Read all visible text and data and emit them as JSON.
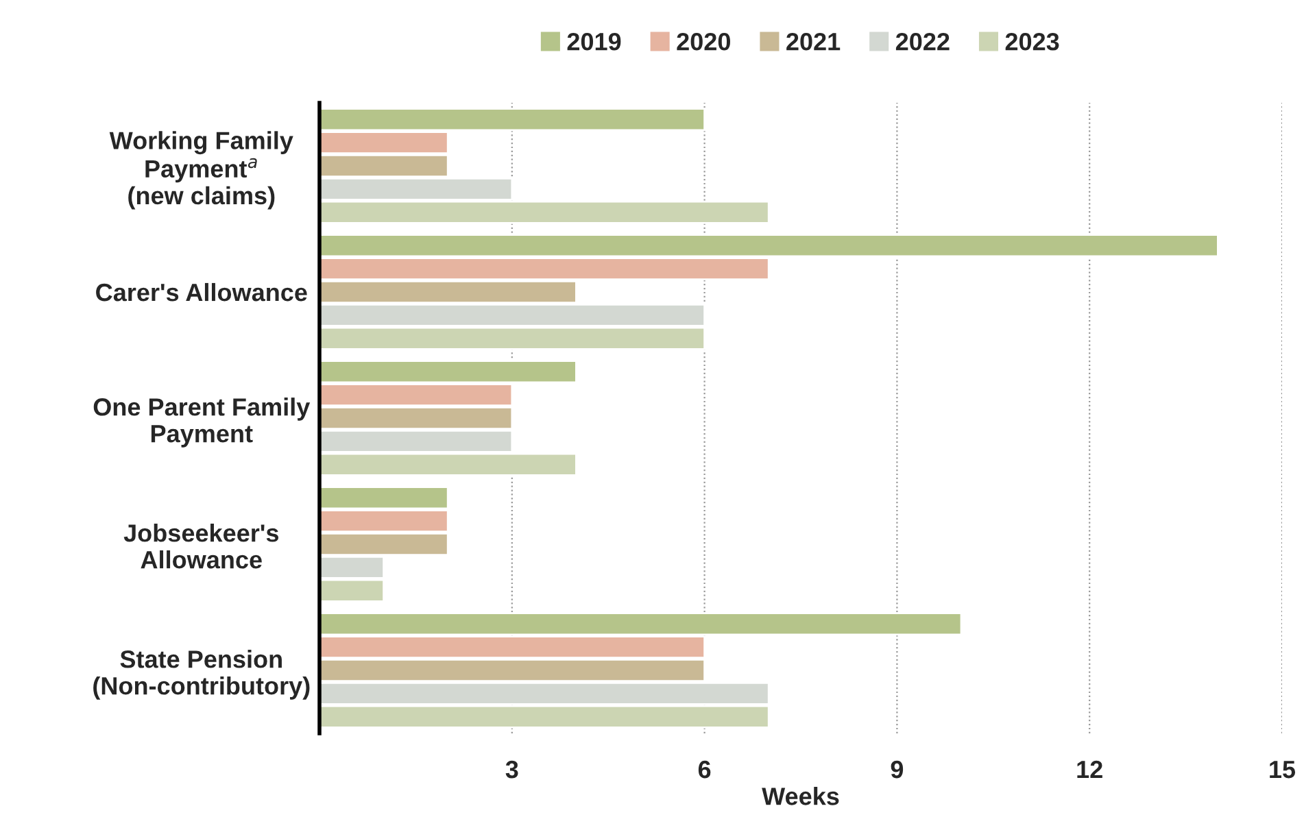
{
  "chart_data": {
    "type": "bar",
    "orientation": "horizontal",
    "categories": [
      "Working Family\nPayment$^{a}$\n(new claims)",
      "Carer's Allowance",
      "One Parent Family\nPayment",
      "Jobseekeer's\nAllowance",
      "State Pension\n(Non-contributory)"
    ],
    "series": [
      {
        "name": "2019",
        "color": "#b5c48a",
        "values": [
          6,
          14,
          4,
          2,
          10
        ]
      },
      {
        "name": "2020",
        "color": "#e6b4a0",
        "values": [
          2,
          7,
          3,
          2,
          6
        ]
      },
      {
        "name": "2021",
        "color": "#c9b995",
        "values": [
          2,
          4,
          3,
          2,
          6
        ]
      },
      {
        "name": "2022",
        "color": "#d3d8d2",
        "values": [
          3,
          6,
          3,
          1,
          7
        ]
      },
      {
        "name": "2023",
        "color": "#ccd5b3",
        "values": [
          7,
          6,
          4,
          1,
          7
        ]
      }
    ],
    "xlim": [
      0,
      15
    ],
    "xticks": [
      3,
      6,
      9,
      12,
      15
    ],
    "xlabel": "Weeks",
    "grid": "x",
    "legend": "top"
  }
}
